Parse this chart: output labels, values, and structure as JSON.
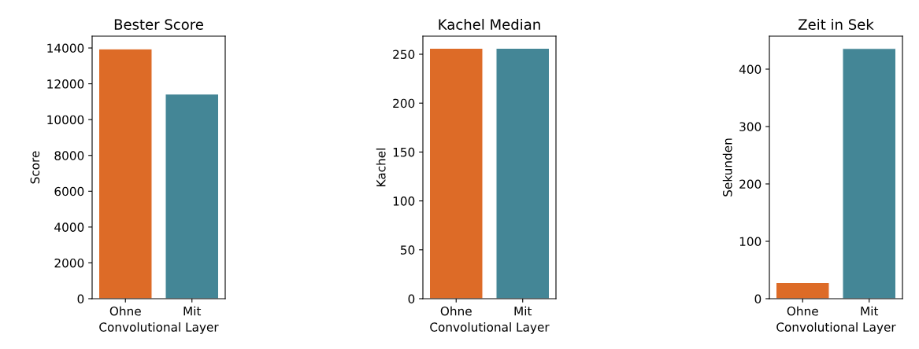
{
  "chart_data": [
    {
      "type": "bar",
      "title": "Bester Score",
      "xlabel": "Convolutional Layer",
      "ylabel": "Score",
      "categories": [
        "Ohne",
        "Mit"
      ],
      "values": [
        13950,
        11430
      ],
      "colors": [
        "#dd6b27",
        "#448696"
      ],
      "ylim": [
        0,
        14660
      ],
      "yticks": [
        0,
        2000,
        4000,
        6000,
        8000,
        10000,
        12000,
        14000
      ],
      "grid": false,
      "legend": false
    },
    {
      "type": "bar",
      "title": "Kachel Median",
      "xlabel": "Convolutional Layer",
      "ylabel": "Kachel",
      "categories": [
        "Ohne",
        "Mit"
      ],
      "values": [
        256,
        256
      ],
      "colors": [
        "#dd6b27",
        "#448696"
      ],
      "ylim": [
        0,
        268.5
      ],
      "yticks": [
        0,
        50,
        100,
        150,
        200,
        250
      ],
      "grid": false,
      "legend": false
    },
    {
      "type": "bar",
      "title": "Zeit in Sek",
      "xlabel": "Convolutional Layer",
      "ylabel": "Sekunden",
      "categories": [
        "Ohne",
        "Mit"
      ],
      "values": [
        28,
        436
      ],
      "colors": [
        "#dd6b27",
        "#448696"
      ],
      "ylim": [
        0,
        457.5
      ],
      "yticks": [
        0,
        100,
        200,
        300,
        400
      ],
      "grid": false,
      "legend": false
    }
  ]
}
